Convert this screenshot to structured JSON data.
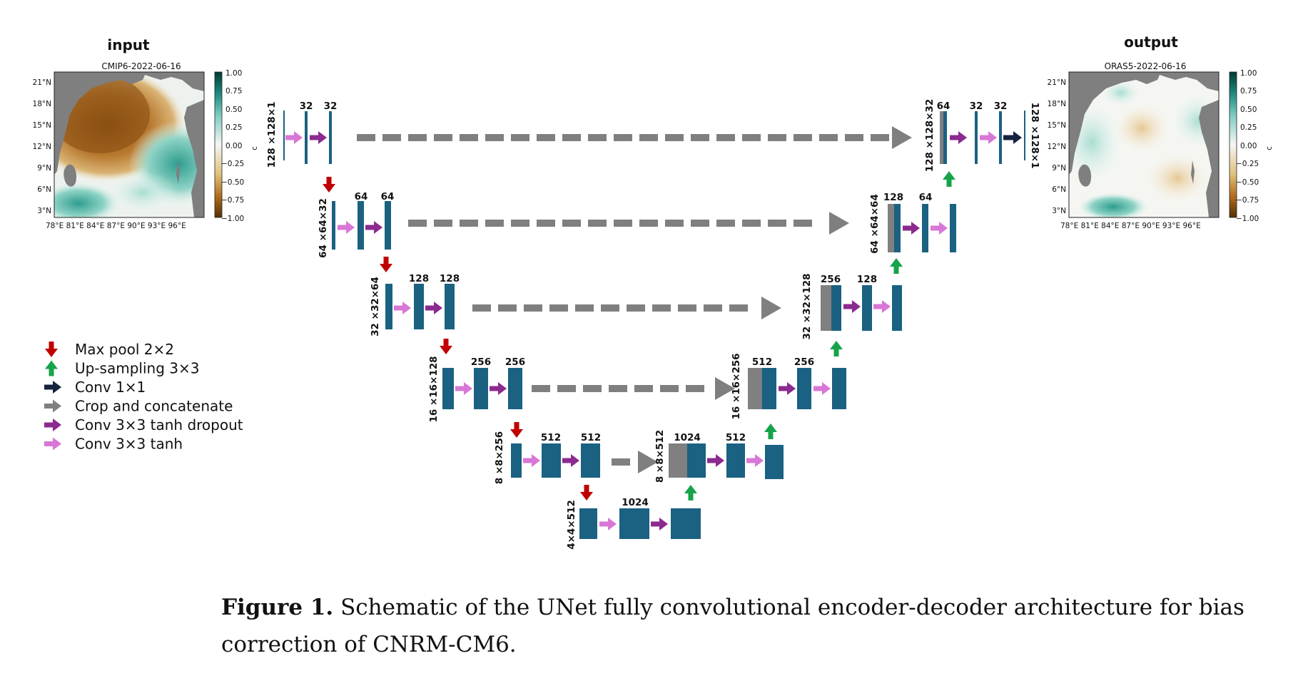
{
  "input_panel": {
    "heading": "input",
    "subtitle": "CMIP6-2022-06-16",
    "lat_ticks": [
      "21°N",
      "18°N",
      "15°N",
      "12°N",
      "9°N",
      "6°N",
      "3°N"
    ],
    "lon_ticks": "78°E 81°E 84°E 87°E 90°E 93°E 96°E",
    "colorbar_ticks": [
      "1.00",
      "0.75",
      "0.50",
      "0.25",
      "0.00",
      "−0.25",
      "−0.50",
      "−0.75",
      "−1.00"
    ],
    "colorbar_unit": "c"
  },
  "output_panel": {
    "heading": "output",
    "subtitle": "ORAS5-2022-06-16",
    "lat_ticks": [
      "21°N",
      "18°N",
      "15°N",
      "12°N",
      "9°N",
      "6°N",
      "3°N"
    ],
    "lon_ticks": "78°E 81°E 84°E 87°E 90°E 93°E 96°E",
    "colorbar_ticks": [
      "1.00",
      "0.75",
      "0.50",
      "0.25",
      "0.00",
      "−0.25",
      "−0.50",
      "−0.75",
      "−1.00"
    ],
    "colorbar_unit": "c"
  },
  "legend": [
    {
      "label": "Max pool 2×2",
      "color": "#c00000",
      "direction": "down"
    },
    {
      "label": "Up-sampling 3×3",
      "color": "#16a34a",
      "direction": "up"
    },
    {
      "label": "Conv 1×1",
      "color": "#16233f",
      "direction": "right"
    },
    {
      "label": "Crop and concatenate",
      "color": "#808080",
      "direction": "right"
    },
    {
      "label": "Conv 3×3 tanh dropout",
      "color": "#8b2a8f",
      "direction": "right"
    },
    {
      "label": "Conv 3×3 tanh",
      "color": "#d877d6",
      "direction": "right"
    }
  ],
  "colors": {
    "block": "#1a6182",
    "concat_block": "#808080",
    "dashed_arrow": "#7f7f7f"
  },
  "encoder_labels": {
    "l1_size": "128 ×128×1",
    "l1_a": "32",
    "l1_b": "32",
    "l2_size": "64 ×64×32",
    "l2_a": "64",
    "l2_b": "64",
    "l3_size": "32 ×32×64",
    "l3_a": "128",
    "l3_b": "128",
    "l4_size": "16 ×16×128",
    "l4_a": "256",
    "l4_b": "256",
    "l5_size": "8 ×8×256",
    "l5_a": "512",
    "l5_b": "512",
    "b_size": "4×4×512",
    "b_a": "1024"
  },
  "decoder_labels": {
    "d5_size": "8 ×8×512",
    "d5_a": "1024",
    "d5_b": "512",
    "d4_size": "16 ×16×256",
    "d4_a": "512",
    "d4_b": "256",
    "d3_size": "32 ×32×128",
    "d3_a": "256",
    "d3_b": "128",
    "d2_size": "64 ×64×64",
    "d2_a": "128",
    "d2_b": "64",
    "d1_size": "128 ×128×32",
    "d1_a": "64",
    "d1_b": "32",
    "d1_c": "32",
    "out_size": "128 ×128×1"
  },
  "caption": {
    "label": "Figure 1.",
    "text": " Schematic of the UNet fully convolutional encoder-decoder architecture for bias correction of CNRM-CM6."
  }
}
